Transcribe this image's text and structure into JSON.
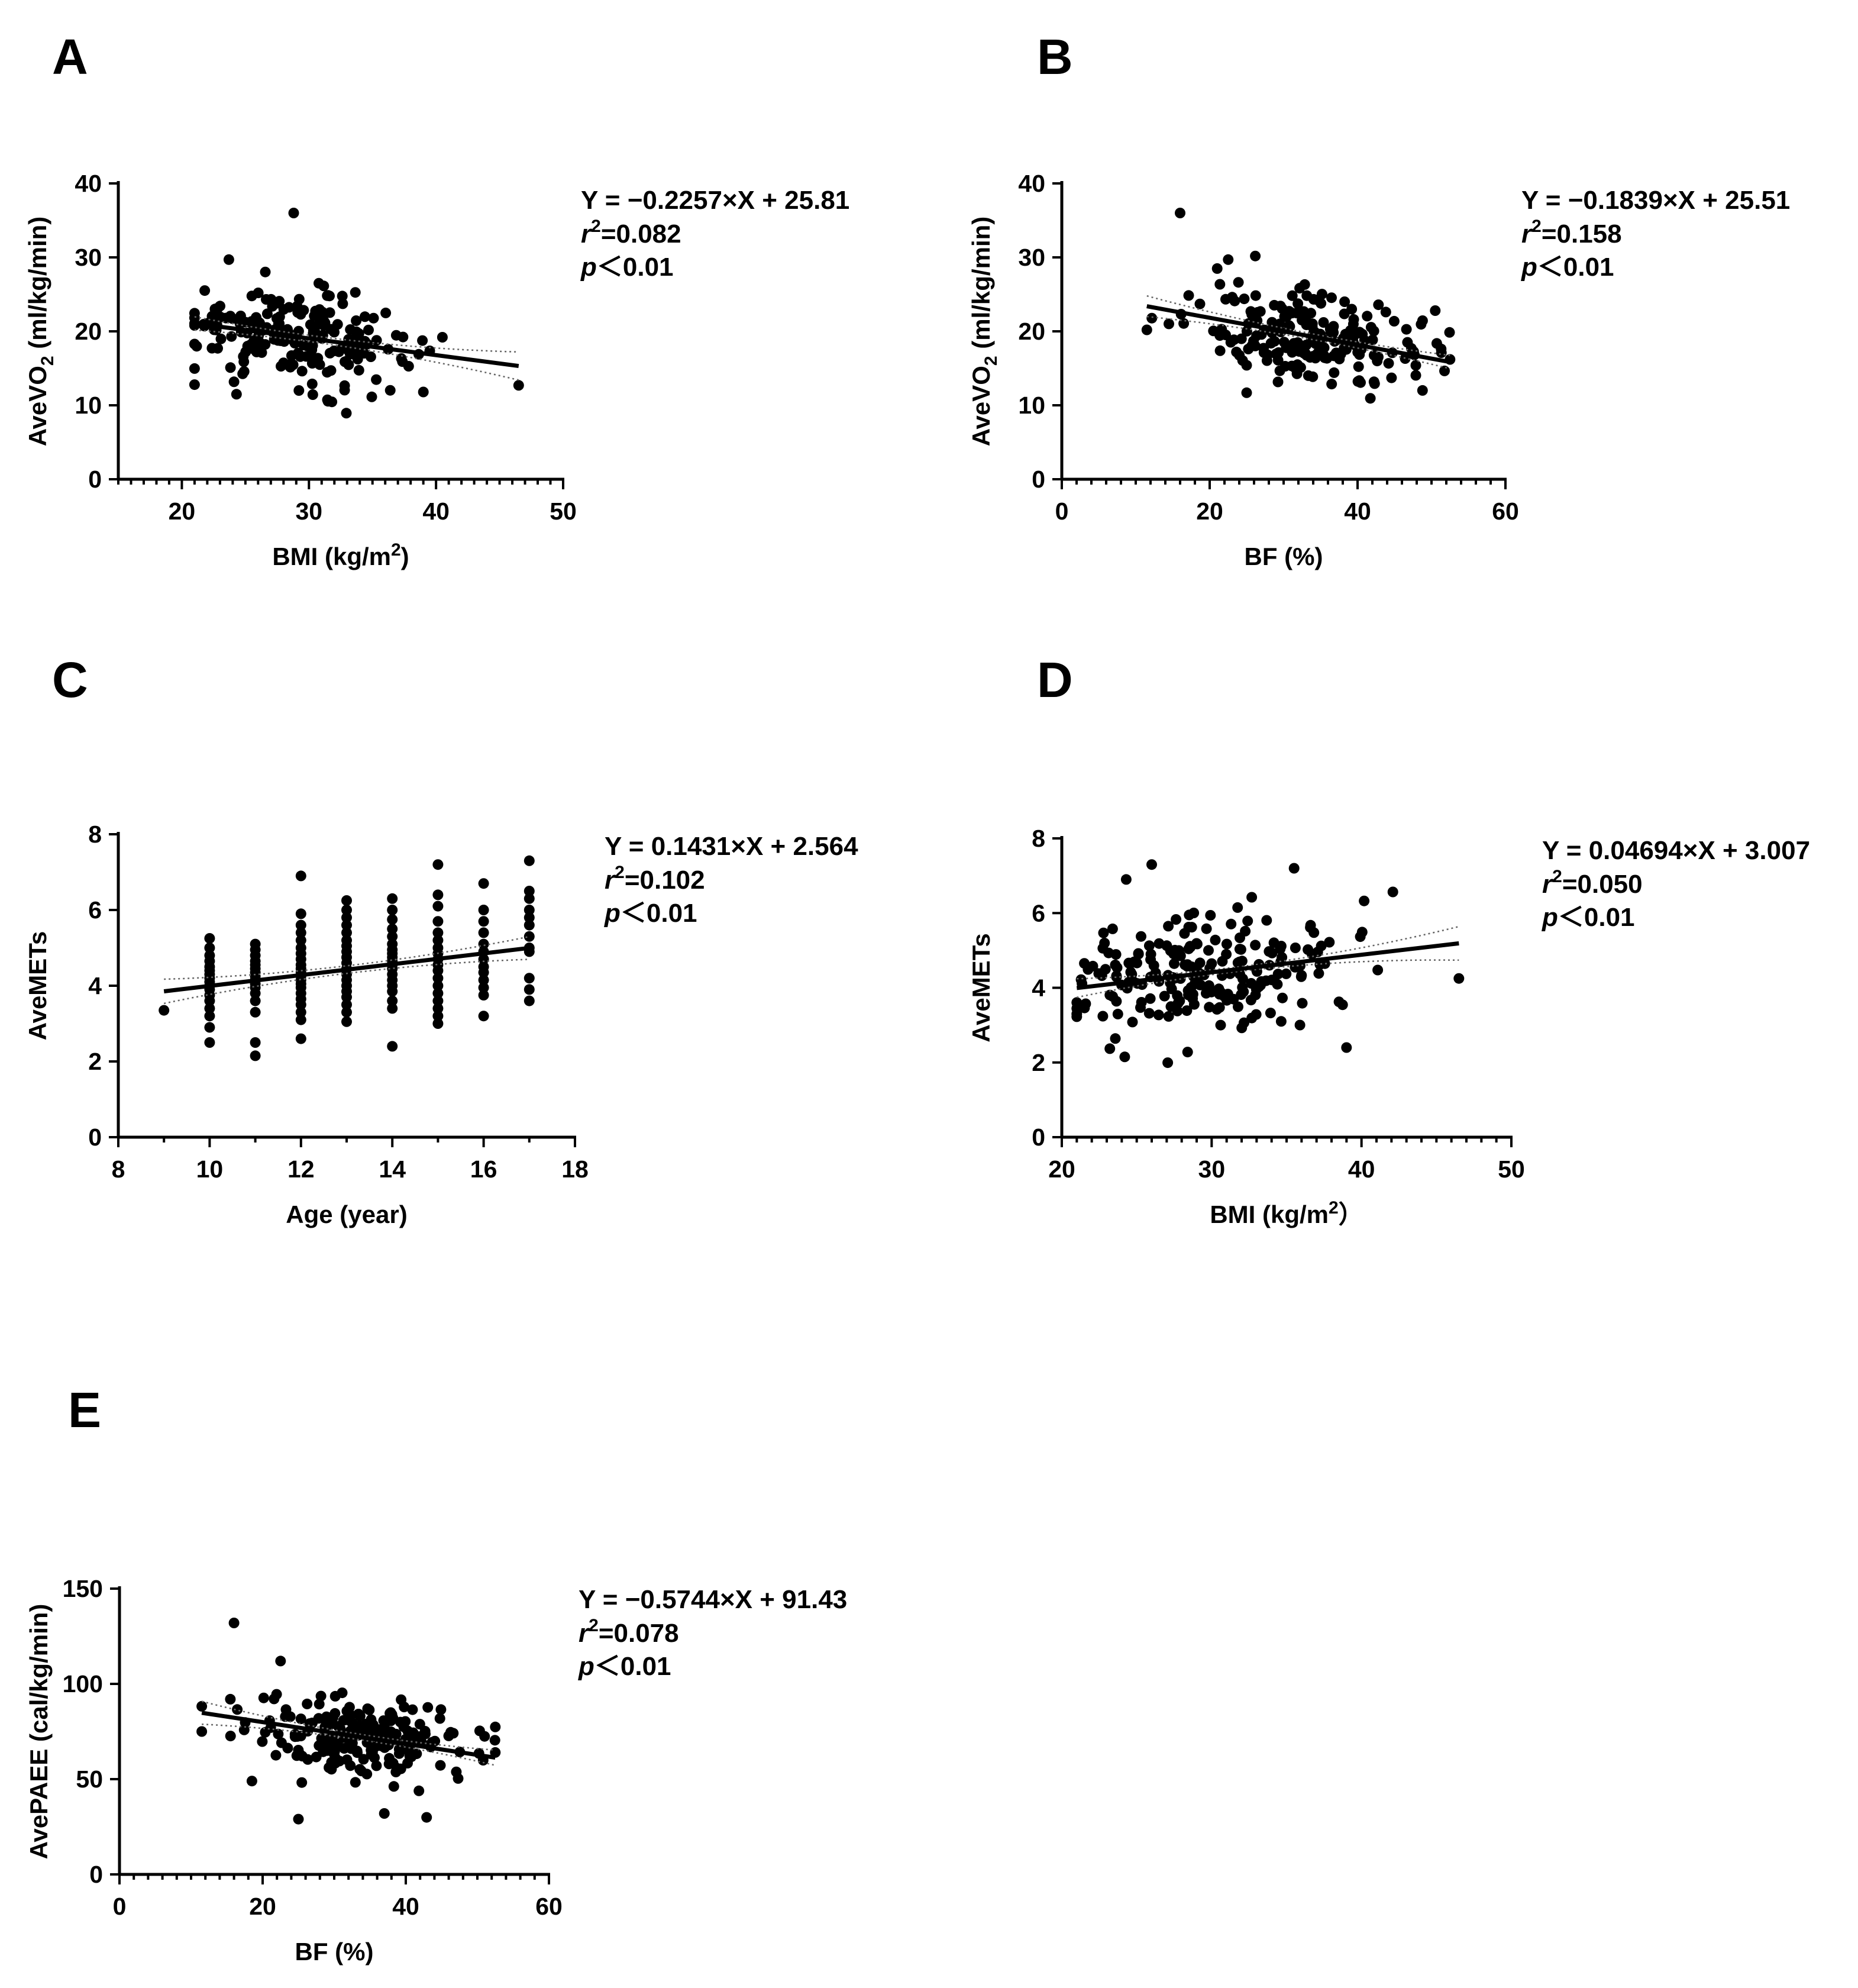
{
  "panels": [
    {
      "id": "A",
      "letter": "A",
      "equation": "Y = −0.2257×X + 25.81",
      "r2_prefix": "r",
      "r2_sup": "2",
      "r2_value": "=0.082",
      "p_italic": "p",
      "p_value": "＜0.01",
      "chart_data": {
        "type": "scatter",
        "xlabel": "BMI (kg/m2)",
        "xlabel_main": "BMI (kg/m",
        "xlabel_sup": "2",
        "xlabel_tail": ")",
        "ylabel": "AveVO2 (ml/kg/min)",
        "ylabel_main": "AveVO",
        "ylabel_sub": "2",
        "ylabel_tail": " (ml/kg/min)",
        "xlim": [
          15,
          50
        ],
        "ylim": [
          0,
          40
        ],
        "xticks": [
          20,
          30,
          40,
          50
        ],
        "yticks": [
          0,
          10,
          20,
          30,
          40
        ],
        "x_minor_step": 1,
        "fit": {
          "slope": -0.2257,
          "intercept": 25.81,
          "x_range": [
            21,
            46.5
          ],
          "ci_half_width": [
            0.9,
            0.5,
            1.9
          ]
        },
        "points_seed": {
          "n": 200,
          "x_range": [
            21,
            46.5
          ],
          "x_center": 29,
          "x_sd": 4.5,
          "y_sd": 3.0
        },
        "points_extra": [
          [
            28.8,
            36
          ],
          [
            23.7,
            29.7
          ],
          [
            46.5,
            12.7
          ],
          [
            39,
            11.8
          ],
          [
            24.3,
            11.5
          ],
          [
            40.5,
            19.2
          ],
          [
            21,
            20.8
          ]
        ]
      }
    },
    {
      "id": "B",
      "letter": "B",
      "equation": "Y = −0.1839×X + 25.51",
      "r2_prefix": "r",
      "r2_sup": "2",
      "r2_value": "=0.158",
      "p_italic": "p",
      "p_value": "＜0.01",
      "chart_data": {
        "type": "scatter",
        "xlabel": "BF (%)",
        "xlabel_main": "BF (%)",
        "xlabel_sup": "",
        "xlabel_tail": "",
        "ylabel": "AveVO2 (ml/kg/min)",
        "ylabel_main": "AveVO",
        "ylabel_sub": "2",
        "ylabel_tail": " (ml/kg/min)",
        "xlim": [
          0,
          60
        ],
        "ylim": [
          0,
          40
        ],
        "xticks": [
          0,
          20,
          40,
          60
        ],
        "yticks": [
          0,
          10,
          20,
          30,
          40
        ],
        "x_minor_step": 2,
        "fit": {
          "slope": -0.1839,
          "intercept": 25.51,
          "x_range": [
            11.5,
            52.5
          ],
          "ci_half_width": [
            1.4,
            0.4,
            0.9
          ]
        },
        "points_seed": {
          "n": 200,
          "x_range": [
            11.5,
            52.5
          ],
          "x_center": 34,
          "x_sd": 7.5,
          "y_sd": 3.0
        },
        "points_extra": [
          [
            16,
            36
          ],
          [
            22.5,
            29.7
          ],
          [
            11.5,
            20.2
          ],
          [
            25,
            11.7
          ],
          [
            50.5,
            22.8
          ],
          [
            52.5,
            16.2
          ]
        ]
      }
    },
    {
      "id": "C",
      "letter": "C",
      "equation": "Y = 0.1431×X + 2.564",
      "r2_prefix": "r",
      "r2_sup": "2",
      "r2_value": "=0.102",
      "p_italic": "p",
      "p_value": "＜0.01",
      "chart_data": {
        "type": "scatter",
        "xlabel": "Age (year)",
        "xlabel_main": "Age (year)",
        "xlabel_sup": "",
        "xlabel_tail": "",
        "ylabel": "AveMETs",
        "ylabel_main": "AveMETs",
        "ylabel_sub": "",
        "ylabel_tail": "",
        "xlim": [
          8,
          18
        ],
        "ylim": [
          0,
          8
        ],
        "xticks": [
          8,
          10,
          12,
          14,
          16,
          18
        ],
        "yticks": [
          0,
          2,
          4,
          6,
          8
        ],
        "x_minor_step": 1,
        "fit": {
          "slope": 0.1431,
          "intercept": 2.564,
          "x_range": [
            9,
            17
          ],
          "ci_half_width": [
            0.32,
            0.1,
            0.3
          ]
        },
        "points_by_x": [
          {
            "x": 9,
            "ys": [
              3.35
            ]
          },
          {
            "x": 10,
            "ys": [
              2.5,
              2.9,
              3.2,
              3.4,
              3.6,
              3.75,
              3.9,
              4.0,
              4.1,
              4.2,
              4.3,
              4.4,
              4.5,
              4.65,
              4.8,
              5.0,
              5.25
            ]
          },
          {
            "x": 11,
            "ys": [
              2.15,
              2.5,
              3.3,
              3.6,
              3.8,
              3.95,
              4.05,
              4.15,
              4.25,
              4.35,
              4.45,
              4.55,
              4.65,
              4.8,
              4.95,
              5.1
            ]
          },
          {
            "x": 12,
            "ys": [
              2.6,
              3.1,
              3.3,
              3.5,
              3.65,
              3.8,
              3.95,
              4.05,
              4.15,
              4.25,
              4.35,
              4.45,
              4.55,
              4.7,
              4.85,
              5.0,
              5.2,
              5.4,
              5.6,
              5.9,
              6.9
            ]
          },
          {
            "x": 13,
            "ys": [
              3.05,
              3.3,
              3.5,
              3.7,
              3.85,
              4.0,
              4.15,
              4.3,
              4.45,
              4.6,
              4.75,
              4.9,
              5.05,
              5.2,
              5.4,
              5.6,
              5.8,
              6.0,
              6.25
            ]
          },
          {
            "x": 14,
            "ys": [
              2.4,
              3.4,
              3.6,
              3.85,
              4.0,
              4.15,
              4.3,
              4.45,
              4.55,
              4.65,
              4.75,
              4.85,
              4.95,
              5.1,
              5.3,
              5.5,
              5.75,
              6.0,
              6.3
            ]
          },
          {
            "x": 15,
            "ys": [
              3.0,
              3.2,
              3.4,
              3.6,
              3.8,
              4.0,
              4.2,
              4.4,
              4.55,
              4.7,
              4.85,
              5.0,
              5.2,
              5.4,
              5.7,
              6.1,
              6.4,
              7.2
            ]
          },
          {
            "x": 16,
            "ys": [
              3.2,
              3.75,
              3.95,
              4.15,
              4.35,
              4.5,
              4.7,
              4.9,
              5.1,
              5.4,
              5.7,
              6.0,
              6.7
            ]
          },
          {
            "x": 17,
            "ys": [
              3.6,
              3.9,
              4.2,
              4.9,
              5.0,
              5.3,
              5.6,
              5.8,
              6.0,
              6.3,
              6.5,
              7.3
            ]
          }
        ]
      }
    },
    {
      "id": "D",
      "letter": "D",
      "equation": "Y = 0.04694×X + 3.007",
      "r2_prefix": "r",
      "r2_sup": "2",
      "r2_value": "=0.050",
      "p_italic": "p",
      "p_value": "＜0.01",
      "chart_data": {
        "type": "scatter",
        "xlabel": "BMI (kg/m2）",
        "xlabel_main": "BMI (kg/m",
        "xlabel_sup": "2",
        "xlabel_tail": "）",
        "ylabel": "AveMETs",
        "ylabel_main": "AveMETs",
        "ylabel_sub": "",
        "ylabel_tail": "",
        "xlim": [
          20,
          50
        ],
        "ylim": [
          0,
          8
        ],
        "xticks": [
          20,
          30,
          40,
          50
        ],
        "yticks": [
          0,
          2,
          4,
          6,
          8
        ],
        "x_minor_step": 1,
        "fit": {
          "slope": 0.04694,
          "intercept": 3.007,
          "x_range": [
            21,
            46.5
          ],
          "ci_half_width": [
            0.25,
            0.07,
            0.45
          ]
        },
        "points_seed": {
          "n": 220,
          "x_range": [
            21,
            46.5
          ],
          "x_center": 29.5,
          "x_sd": 4.3,
          "y_sd": 0.85
        },
        "points_extra": [
          [
            24.3,
            6.9
          ],
          [
            26,
            7.3
          ],
          [
            35.5,
            7.2
          ],
          [
            39,
            2.4
          ],
          [
            24.2,
            2.15
          ],
          [
            46.5,
            4.25
          ],
          [
            21,
            3.3
          ]
        ]
      }
    },
    {
      "id": "E",
      "letter": "E",
      "equation": "Y = −0.5744×X + 91.43",
      "r2_prefix": "r",
      "r2_sup": "2",
      "r2_value": "=0.078",
      "p_italic": "p",
      "p_value": "＜0.01",
      "chart_data": {
        "type": "scatter",
        "xlabel": "BF (%)",
        "xlabel_main": "BF (%)",
        "xlabel_sup": "",
        "xlabel_tail": "",
        "ylabel": "AvePAEE (cal/kg/min)",
        "ylabel_main": "AvePAEE (cal/kg/min)",
        "ylabel_sub": "",
        "ylabel_tail": "",
        "xlim": [
          0,
          60
        ],
        "ylim": [
          0,
          150
        ],
        "xticks": [
          0,
          20,
          40,
          60
        ],
        "yticks": [
          0,
          50,
          100,
          150
        ],
        "x_minor_step": 2,
        "fit": {
          "slope": -0.5744,
          "intercept": 91.43,
          "x_range": [
            11.5,
            52.5
          ],
          "ci_half_width": [
            6.0,
            1.5,
            4.0
          ]
        },
        "points_seed": {
          "n": 200,
          "x_range": [
            11.5,
            52.5
          ],
          "x_center": 34,
          "x_sd": 7.5,
          "y_sd": 11
        },
        "points_extra": [
          [
            16,
            132
          ],
          [
            22.5,
            112
          ],
          [
            25,
            29
          ],
          [
            37,
            32
          ],
          [
            11.5,
            75
          ],
          [
            18.5,
            49
          ],
          [
            52.5,
            64
          ]
        ]
      }
    }
  ]
}
